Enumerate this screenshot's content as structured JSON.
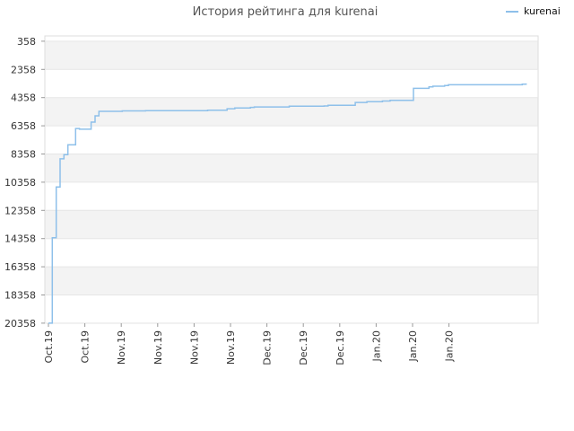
{
  "chart_data": {
    "type": "line",
    "title": "История рейтинга для kurenai",
    "xlabel": "",
    "ylabel": "",
    "y_inverted": true,
    "ylim": [
      20358,
      358
    ],
    "y_ticks": [
      358,
      2358,
      4358,
      6358,
      8358,
      10358,
      12358,
      14358,
      16358,
      18358,
      20358
    ],
    "y_tick_labels": [
      "358",
      "2358",
      "4358",
      "6358",
      "8358",
      "10358",
      "12358",
      "14358",
      "16358",
      "18358",
      "20358"
    ],
    "x_tick_labels": [
      "Oct.19",
      "Oct.19",
      "Nov.19",
      "Nov.19",
      "Nov.19",
      "Nov.19",
      "Dec.19",
      "Dec.19",
      "Dec.19",
      "Jan.20",
      "Jan.20",
      "Jan.20"
    ],
    "grid": true,
    "legend_position": "top-right",
    "colors": {
      "series": "#8ec0ea",
      "band": "#f3f3f3",
      "grid": "#e6e6e6"
    },
    "series": [
      {
        "name": "kurenai",
        "step": true,
        "x": [
          "2019-10-01",
          "2019-10-02",
          "2019-10-03",
          "2019-10-04",
          "2019-10-05",
          "2019-10-06",
          "2019-10-08",
          "2019-10-09",
          "2019-10-12",
          "2019-10-13",
          "2019-10-14",
          "2019-10-20",
          "2019-10-26",
          "2019-11-11",
          "2019-11-16",
          "2019-11-18",
          "2019-11-22",
          "2019-11-23",
          "2019-12-02",
          "2019-12-03",
          "2019-12-11",
          "2019-12-12",
          "2019-12-16",
          "2019-12-19",
          "2019-12-22",
          "2019-12-26",
          "2019-12-28",
          "2019-12-30",
          "2020-01-03",
          "2020-01-07",
          "2020-01-08",
          "2020-01-11",
          "2020-01-12",
          "2020-01-31",
          "2020-02-01"
        ],
        "y": [
          20358,
          14300,
          10700,
          8700,
          8400,
          7700,
          6550,
          6600,
          6100,
          5650,
          5330,
          5300,
          5280,
          5250,
          5150,
          5100,
          5050,
          5020,
          4970,
          4960,
          4950,
          4900,
          4900,
          4700,
          4650,
          4600,
          4550,
          4550,
          3700,
          3600,
          3550,
          3500,
          3450,
          3400,
          3350
        ]
      }
    ]
  }
}
